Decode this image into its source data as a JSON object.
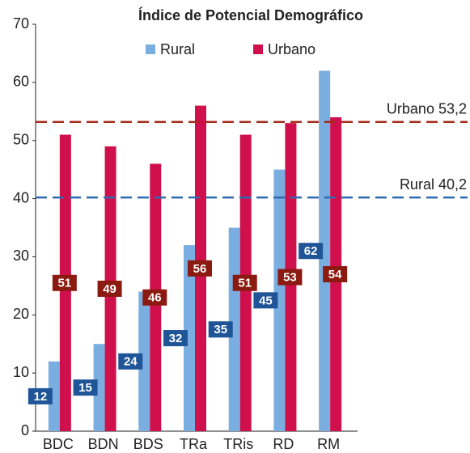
{
  "chart_data": {
    "type": "bar",
    "title": "Índice de Potencial Demográfico",
    "categories": [
      "BDC",
      "BDN",
      "BDS",
      "TRa",
      "TRis",
      "RD",
      "RM"
    ],
    "series": [
      {
        "name": "Rural",
        "color": "#7aaee0",
        "label_color": "#1f5597",
        "values": [
          12,
          15,
          24,
          32,
          35,
          45,
          62
        ]
      },
      {
        "name": "Urbano",
        "color": "#d0104c",
        "label_color": "#8b1a10",
        "values": [
          51,
          49,
          46,
          56,
          51,
          53,
          54
        ]
      }
    ],
    "reference_lines": [
      {
        "label": "Urbano 53,2",
        "value": 53.2,
        "color": "#a52a1a"
      },
      {
        "label": "Rural 40,2",
        "value": 40.2,
        "color": "#2e6ab0"
      }
    ],
    "ylim": [
      0,
      70
    ],
    "yticks": [
      0,
      10,
      20,
      30,
      40,
      50,
      60,
      70
    ]
  }
}
